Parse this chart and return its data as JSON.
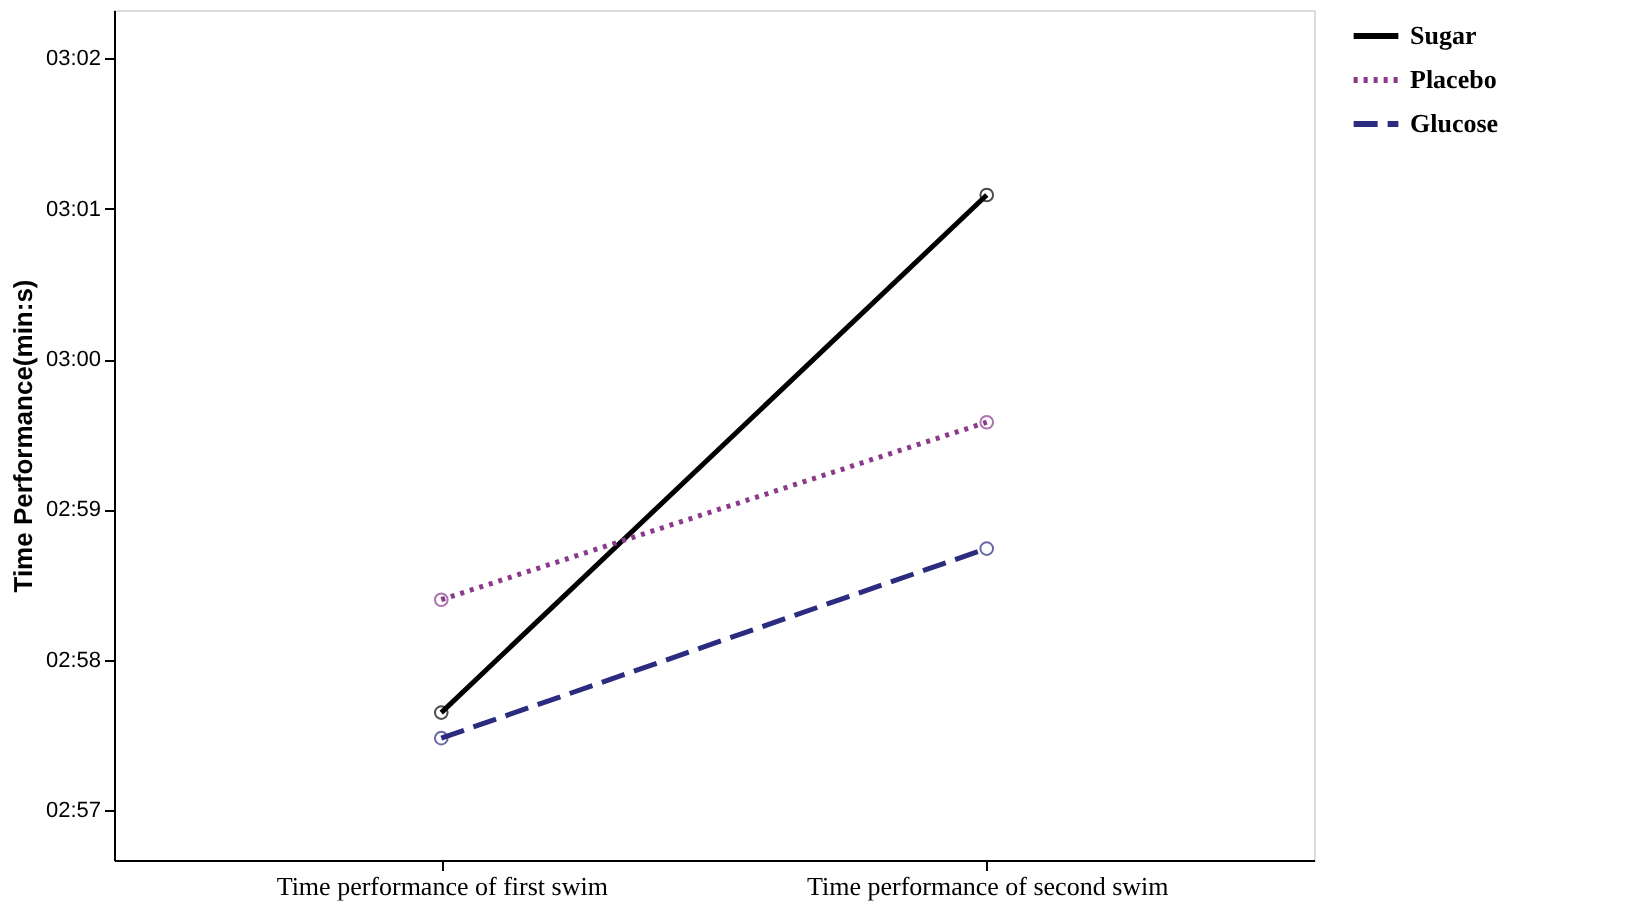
{
  "chart_data": {
    "type": "line",
    "ylabel": "Time Performance(min:s)",
    "categories": [
      "Time performance of first swim",
      "Time performance of second swim"
    ],
    "series": [
      {
        "name": "Sugar",
        "color": "#000000",
        "line_style": "solid",
        "values": [
          177.65,
          181.09
        ]
      },
      {
        "name": "Placebo",
        "color": "#8b3a8b",
        "line_style": "dotted",
        "values": [
          178.4,
          179.58
        ]
      },
      {
        "name": "Glucose",
        "color": "#2b2b80",
        "line_style": "dashed",
        "values": [
          177.48,
          178.74
        ]
      }
    ],
    "ylim": [
      176.67,
      182.32
    ],
    "yticks": [
      {
        "value": 177,
        "label": "02:57"
      },
      {
        "value": 178,
        "label": "02:58"
      },
      {
        "value": 179,
        "label": "02:59"
      },
      {
        "value": 180,
        "label": "03:00"
      },
      {
        "value": 181,
        "label": "03:01"
      },
      {
        "value": 182,
        "label": "03:02"
      }
    ],
    "marker": "circle",
    "grid": false,
    "legend": "top right"
  }
}
